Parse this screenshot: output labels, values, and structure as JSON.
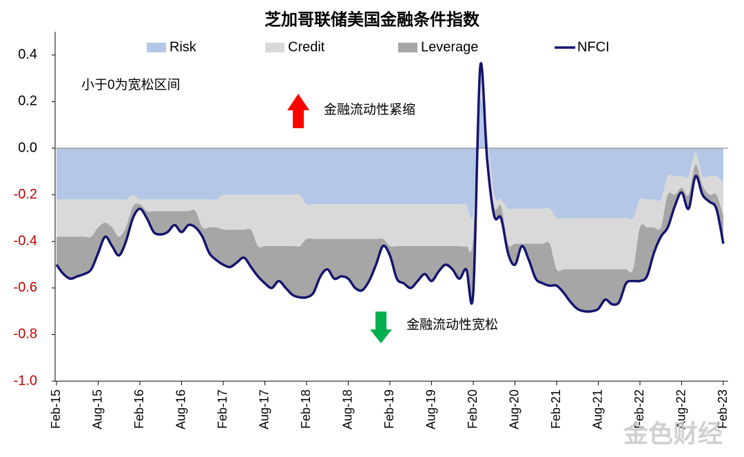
{
  "chart_data": {
    "type": "area",
    "title": "芝加哥联储美国金融条件指数",
    "annotations": [
      "小于0为宽松区间",
      "金融流动性紧缩",
      "金融流动性宽松"
    ],
    "watermark": "金色财经",
    "categories": [
      "Feb-15",
      null,
      null,
      null,
      null,
      null,
      "Aug-15",
      null,
      null,
      null,
      null,
      null,
      "Feb-16",
      null,
      null,
      null,
      null,
      null,
      "Aug-16",
      null,
      null,
      null,
      null,
      null,
      "Feb-17",
      null,
      null,
      null,
      null,
      null,
      "Aug-17",
      null,
      null,
      null,
      null,
      null,
      "Feb-18",
      null,
      null,
      null,
      null,
      null,
      "Aug-18",
      null,
      null,
      null,
      null,
      null,
      "Feb-19",
      null,
      null,
      null,
      null,
      null,
      "Aug-19",
      null,
      null,
      null,
      null,
      null,
      "Feb-20",
      null,
      null,
      null,
      null,
      null,
      "Aug-20",
      null,
      null,
      null,
      null,
      null,
      "Feb-21",
      null,
      null,
      null,
      null,
      null,
      "Aug-21",
      null,
      null,
      null,
      null,
      null,
      "Feb-22",
      null,
      null,
      null,
      null,
      null,
      "Aug-22",
      null,
      null,
      null,
      null,
      null,
      "Feb-23"
    ],
    "series": [
      {
        "name": "Risk",
        "color": "#b4c7e7",
        "values": [
          -0.22,
          -0.22,
          -0.22,
          -0.22,
          -0.22,
          -0.22,
          -0.22,
          -0.22,
          -0.22,
          -0.22,
          -0.22,
          -0.2,
          -0.22,
          -0.22,
          -0.22,
          -0.22,
          -0.22,
          -0.22,
          -0.22,
          -0.22,
          -0.22,
          -0.22,
          -0.22,
          -0.22,
          -0.2,
          -0.2,
          -0.2,
          -0.2,
          -0.2,
          -0.2,
          -0.2,
          -0.2,
          -0.2,
          -0.2,
          -0.2,
          -0.2,
          -0.24,
          -0.24,
          -0.24,
          -0.24,
          -0.24,
          -0.24,
          -0.24,
          -0.24,
          -0.24,
          -0.24,
          -0.24,
          -0.24,
          -0.24,
          -0.24,
          -0.24,
          -0.24,
          -0.24,
          -0.24,
          -0.24,
          -0.24,
          -0.24,
          -0.24,
          -0.24,
          -0.24,
          -0.28,
          0.2,
          0.05,
          -0.2,
          -0.22,
          -0.26,
          -0.26,
          -0.26,
          -0.26,
          -0.26,
          -0.26,
          -0.26,
          -0.3,
          -0.3,
          -0.3,
          -0.3,
          -0.3,
          -0.3,
          -0.3,
          -0.3,
          -0.3,
          -0.3,
          -0.3,
          -0.3,
          -0.22,
          -0.22,
          -0.22,
          -0.22,
          -0.12,
          -0.12,
          -0.12,
          -0.12,
          -0.02,
          -0.12,
          -0.12,
          -0.12,
          -0.15
        ]
      },
      {
        "name": "Credit",
        "color": "#d9d9d9",
        "values": [
          -0.16,
          -0.16,
          -0.16,
          -0.16,
          -0.16,
          -0.16,
          -0.12,
          -0.1,
          -0.12,
          -0.16,
          -0.12,
          -0.05,
          -0.02,
          -0.05,
          -0.05,
          -0.05,
          -0.05,
          -0.05,
          -0.05,
          -0.05,
          -0.05,
          -0.12,
          -0.12,
          -0.12,
          -0.15,
          -0.15,
          -0.15,
          -0.15,
          -0.15,
          -0.22,
          -0.22,
          -0.22,
          -0.22,
          -0.22,
          -0.22,
          -0.22,
          -0.15,
          -0.15,
          -0.15,
          -0.15,
          -0.15,
          -0.15,
          -0.15,
          -0.15,
          -0.15,
          -0.15,
          -0.15,
          -0.15,
          -0.18,
          -0.18,
          -0.18,
          -0.18,
          -0.18,
          -0.18,
          -0.18,
          -0.18,
          -0.18,
          -0.18,
          -0.18,
          -0.18,
          -0.1,
          0.15,
          -0.05,
          -0.05,
          -0.03,
          -0.15,
          -0.15,
          -0.15,
          -0.15,
          -0.15,
          -0.15,
          -0.15,
          -0.22,
          -0.22,
          -0.22,
          -0.22,
          -0.22,
          -0.22,
          -0.22,
          -0.22,
          -0.22,
          -0.22,
          -0.22,
          -0.22,
          -0.12,
          -0.12,
          -0.12,
          -0.12,
          -0.08,
          -0.08,
          -0.05,
          -0.08,
          -0.05,
          -0.04,
          -0.08,
          -0.08,
          -0.14
        ]
      },
      {
        "name": "Leverage",
        "color": "#a6a6a6",
        "values": [
          -0.12,
          -0.16,
          -0.18,
          -0.17,
          -0.16,
          -0.14,
          -0.11,
          -0.06,
          -0.08,
          -0.08,
          -0.06,
          -0.05,
          -0.02,
          -0.03,
          -0.09,
          -0.1,
          -0.09,
          -0.06,
          -0.09,
          -0.06,
          -0.07,
          -0.04,
          -0.11,
          -0.14,
          -0.15,
          -0.16,
          -0.14,
          -0.12,
          -0.16,
          -0.13,
          -0.16,
          -0.18,
          -0.15,
          -0.18,
          -0.21,
          -0.22,
          -0.25,
          -0.23,
          -0.16,
          -0.13,
          -0.17,
          -0.16,
          -0.17,
          -0.21,
          -0.22,
          -0.18,
          -0.11,
          -0.03,
          -0.04,
          -0.14,
          -0.16,
          -0.18,
          -0.15,
          -0.12,
          -0.15,
          -0.11,
          -0.08,
          -0.1,
          -0.14,
          -0.1,
          -0.24,
          0.0,
          -0.05,
          -0.04,
          -0.05,
          -0.04,
          -0.09,
          -0.01,
          -0.07,
          -0.15,
          -0.17,
          -0.18,
          -0.07,
          -0.1,
          -0.14,
          -0.17,
          -0.18,
          -0.18,
          -0.17,
          -0.13,
          -0.15,
          -0.14,
          -0.06,
          -0.05,
          -0.23,
          -0.21,
          -0.11,
          -0.04,
          -0.14,
          -0.05,
          -0.02,
          -0.06,
          -0.05,
          -0.04,
          -0.03,
          -0.06,
          -0.12
        ]
      },
      {
        "name": "NFCI",
        "type": "line",
        "color": "#14146e",
        "values": [
          -0.5,
          -0.54,
          -0.56,
          -0.55,
          -0.54,
          -0.52,
          -0.45,
          -0.38,
          -0.42,
          -0.46,
          -0.4,
          -0.3,
          -0.26,
          -0.3,
          -0.36,
          -0.37,
          -0.36,
          -0.33,
          -0.36,
          -0.33,
          -0.34,
          -0.38,
          -0.45,
          -0.48,
          -0.5,
          -0.51,
          -0.49,
          -0.47,
          -0.51,
          -0.55,
          -0.58,
          -0.6,
          -0.57,
          -0.6,
          -0.63,
          -0.64,
          -0.64,
          -0.62,
          -0.55,
          -0.52,
          -0.56,
          -0.55,
          -0.56,
          -0.6,
          -0.61,
          -0.57,
          -0.5,
          -0.42,
          -0.46,
          -0.56,
          -0.58,
          -0.6,
          -0.57,
          -0.54,
          -0.57,
          -0.53,
          -0.5,
          -0.52,
          -0.56,
          -0.52,
          -0.62,
          0.35,
          -0.05,
          -0.29,
          -0.3,
          -0.45,
          -0.5,
          -0.42,
          -0.48,
          -0.56,
          -0.58,
          -0.59,
          -0.59,
          -0.62,
          -0.66,
          -0.69,
          -0.7,
          -0.7,
          -0.69,
          -0.65,
          -0.67,
          -0.66,
          -0.58,
          -0.57,
          -0.57,
          -0.55,
          -0.45,
          -0.38,
          -0.34,
          -0.25,
          -0.19,
          -0.26,
          -0.12,
          -0.2,
          -0.23,
          -0.26,
          -0.41
        ]
      }
    ],
    "ylim": [
      -1,
      0.5
    ],
    "yticks": [
      {
        "value": -1,
        "label": "-1.0"
      },
      -0.8,
      -0.6,
      -0.4,
      -0.2,
      {
        "value": 0,
        "label": "0.0"
      },
      0.2,
      0.4
    ],
    "grid": false
  }
}
